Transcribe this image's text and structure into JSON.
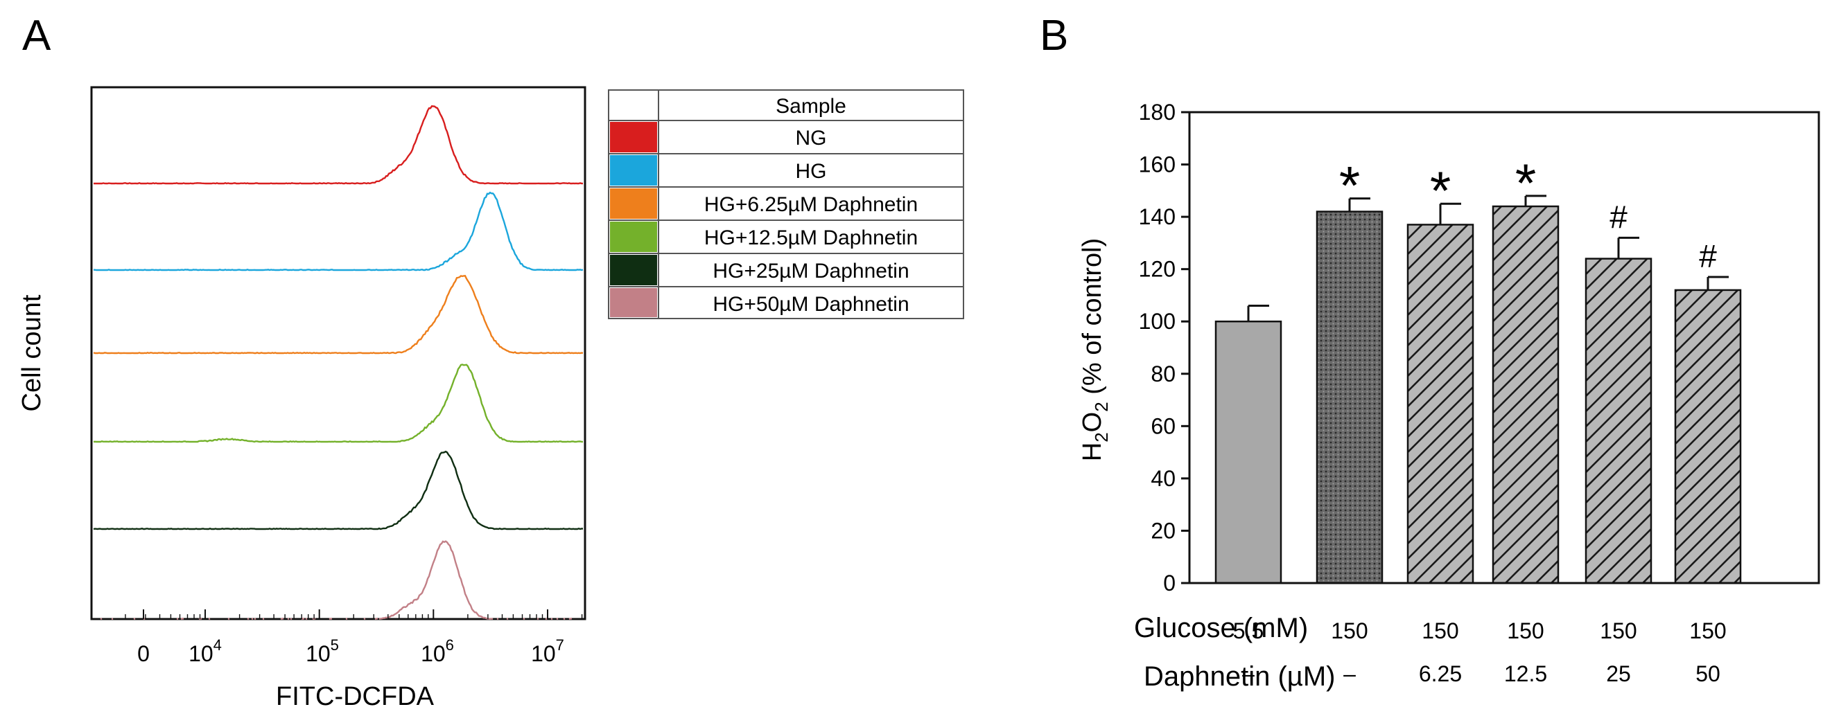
{
  "panel_a": {
    "label": "A",
    "ylabel": "Cell count",
    "xlabel": "FITC-DCFDA",
    "ticks": [
      "0",
      "10",
      "10",
      "10",
      "10"
    ],
    "tick_exponents": [
      "",
      "4",
      "5",
      "6",
      "7"
    ],
    "legend": {
      "header": "Sample",
      "entries": [
        {
          "label": "NG",
          "color": "#d81e1e"
        },
        {
          "label": "HG",
          "color": "#1ba6dc"
        },
        {
          "label": "HG+6.25µM Daphnetin",
          "color": "#ee7f1c"
        },
        {
          "label": "HG+12.5µM Daphnetin",
          "color": "#74b12b"
        },
        {
          "label": "HG+25µM Daphnetin",
          "color": "#0f2e12"
        },
        {
          "label": "HG+50µM Daphnetin",
          "color": "#c28087"
        }
      ]
    }
  },
  "panel_b": {
    "label": "B",
    "ylabel_parts": [
      "H",
      "2",
      "O",
      "2",
      " (% of control)"
    ],
    "row_labels": [
      "Glucose (mM)",
      "Daphnetin (µM)"
    ],
    "glucose": [
      "5.5",
      "150",
      "150",
      "150",
      "150",
      "150"
    ],
    "daphnetin": [
      "–",
      "–",
      "6.25",
      "12.5",
      "25",
      "50"
    ]
  },
  "chart_data": [
    {
      "type": "line",
      "title": "",
      "xlabel": "FITC-DCFDA",
      "ylabel": "Cell count",
      "x_scale": "log",
      "x_tick_labels": [
        "0",
        "10^4",
        "10^5",
        "10^6",
        "10^7"
      ],
      "series": [
        {
          "name": "NG",
          "color": "#d81e1e",
          "peak_log10": 6.0
        },
        {
          "name": "HG",
          "color": "#1ba6dc",
          "peak_log10": 6.5
        },
        {
          "name": "HG+6.25µM Daphnetin",
          "color": "#ee7f1c",
          "peak_log10": 6.25
        },
        {
          "name": "HG+12.5µM Daphnetin",
          "color": "#74b12b",
          "peak_log10": 6.27
        },
        {
          "name": "HG+25µM Daphnetin",
          "color": "#0f2e12",
          "peak_log10": 6.1
        },
        {
          "name": "HG+50µM Daphnetin",
          "color": "#c28087",
          "peak_log10": 6.1
        }
      ]
    },
    {
      "type": "bar",
      "title": "",
      "xlabel": "",
      "ylabel": "H2O2 (% of control)",
      "ylim": [
        0,
        180
      ],
      "yticks": [
        0,
        20,
        40,
        60,
        80,
        100,
        120,
        140,
        160,
        180
      ],
      "categories": [
        "5.5 / –",
        "150 / –",
        "150 / 6.25",
        "150 / 12.5",
        "150 / 25",
        "150 / 50"
      ],
      "values": [
        100,
        142,
        137,
        144,
        124,
        112
      ],
      "errors": [
        6,
        5,
        8,
        4,
        8,
        5
      ],
      "significance": [
        "",
        "*",
        "*",
        "*",
        "#",
        "#"
      ],
      "fills": [
        "solid",
        "dots",
        "hatch",
        "hatch",
        "hatch",
        "hatch"
      ]
    }
  ]
}
